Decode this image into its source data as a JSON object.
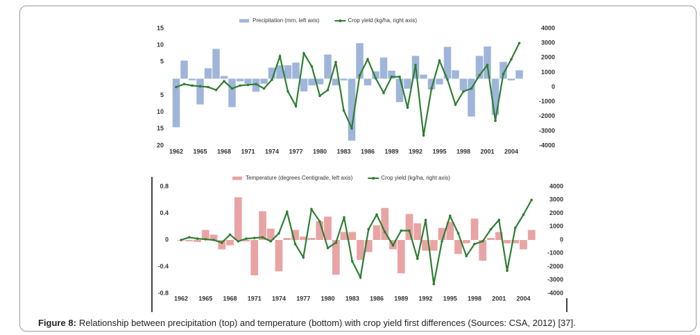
{
  "figure": {
    "caption_label": "Figure 8:",
    "caption_text": "Relationship between precipitation (top) and temperature (bottom) with crop yield first differences (Sources: CSA, 2012) [37]."
  },
  "chart_data": [
    {
      "type": "combo",
      "categories": [
        "1962",
        null,
        null,
        "1965",
        null,
        null,
        "1968",
        null,
        null,
        "1971",
        null,
        null,
        "1974",
        null,
        null,
        "1977",
        null,
        null,
        "1980",
        null,
        null,
        "1983",
        null,
        null,
        "1986",
        null,
        null,
        "1989",
        null,
        null,
        "1992",
        null,
        null,
        "1995",
        null,
        null,
        "1998",
        null,
        null,
        "2001",
        null,
        null,
        "2004",
        null
      ],
      "series": [
        {
          "name": "Precipitation (mm, left axis)",
          "type": "bar",
          "color": "#9fb5da",
          "axis": "y",
          "values": [
            -14.5,
            5.4,
            -0.5,
            -7.7,
            3.1,
            8.9,
            0.8,
            -8.5,
            -0.8,
            -1.5,
            -3.9,
            -1.5,
            3.3,
            4.0,
            4.0,
            4.8,
            -3.8,
            -2.0,
            -1.7,
            7.2,
            -2.0,
            -0.5,
            -18.5,
            10.6,
            -2.0,
            2.2,
            6.3,
            2.4,
            -7.0,
            -3.0,
            6.8,
            1.2,
            -3.2,
            -1.7,
            9.5,
            2.5,
            -3.5,
            -11.3,
            6.8,
            9.6,
            -10.8,
            5.0,
            -0.5,
            2.5
          ]
        },
        {
          "name": "Crop yield (kg/ha, right axis)",
          "type": "line",
          "color": "#2e7d32",
          "axis": "y2",
          "values": [
            0,
            200,
            100,
            50,
            0,
            -200,
            400,
            -100,
            100,
            150,
            200,
            -100,
            500,
            2100,
            -300,
            -1300,
            2300,
            1400,
            -600,
            -200,
            1700,
            -1600,
            -2800,
            800,
            1900,
            600,
            -400,
            700,
            700,
            -1400,
            1500,
            -3300,
            -100,
            1800,
            500,
            -1200,
            -300,
            -100,
            800,
            1500,
            -2300,
            900,
            1900,
            3000
          ]
        }
      ],
      "ylim": [
        -20,
        15
      ],
      "yticks": [
        15,
        10,
        5,
        {
          "value": -5,
          "label": "5"
        },
        {
          "value": -10,
          "label": "10"
        },
        {
          "value": -15,
          "label": "15"
        },
        {
          "value": -20,
          "label": "20"
        }
      ],
      "y2lim": [
        -4000,
        4000
      ],
      "y2ticks": [
        4000,
        3000,
        2000,
        1000,
        0,
        -1000,
        -2000,
        -3000,
        -4000
      ]
    },
    {
      "type": "combo",
      "categories": [
        "1962",
        null,
        null,
        "1965",
        null,
        null,
        "1968",
        null,
        null,
        "1971",
        null,
        null,
        "1974",
        null,
        null,
        "1977",
        null,
        null,
        "1980",
        null,
        null,
        "1983",
        null,
        null,
        "1986",
        null,
        null,
        "1989",
        null,
        null,
        "1992",
        null,
        null,
        "1995",
        null,
        null,
        "1998",
        null,
        null,
        "2001",
        null,
        null,
        "2004",
        null
      ],
      "series": [
        {
          "name": "Temperature (degrees Centigrade, left axis)",
          "type": "bar",
          "color": "#e8a4a4",
          "axis": "y",
          "values": [
            -0.01,
            -0.02,
            -0.03,
            0.15,
            0.08,
            -0.14,
            -0.08,
            0.64,
            -0.02,
            -0.53,
            0.43,
            0.17,
            -0.47,
            0.03,
            0.15,
            0.05,
            0.03,
            0.28,
            0.35,
            -0.52,
            0.12,
            0.12,
            -0.3,
            -0.18,
            0.22,
            0.48,
            -0.14,
            -0.5,
            0.39,
            0.25,
            -0.16,
            -0.16,
            0.18,
            0.27,
            -0.21,
            -0.05,
            0.32,
            -0.31,
            0.03,
            0.12,
            -0.05,
            -0.05,
            -0.14,
            0.15
          ]
        },
        {
          "name": "Crop yield (kg/ha, right axis)",
          "type": "line",
          "color": "#2e7d32",
          "axis": "y2",
          "values": [
            0,
            200,
            100,
            50,
            0,
            -200,
            400,
            -100,
            100,
            150,
            200,
            -100,
            500,
            2100,
            -300,
            -1300,
            2300,
            1400,
            -600,
            -200,
            1700,
            -1600,
            -2800,
            800,
            1900,
            600,
            -400,
            700,
            700,
            -1400,
            1500,
            -3300,
            -100,
            1800,
            500,
            -1200,
            -300,
            -100,
            800,
            1500,
            -2300,
            900,
            1900,
            3000
          ]
        }
      ],
      "ylim": [
        -0.8,
        0.8
      ],
      "yticks": [
        0.8,
        0.4,
        0,
        -0.4,
        -0.8
      ],
      "y2lim": [
        -4000,
        4000
      ],
      "y2ticks": [
        4000,
        3000,
        2000,
        1000,
        0,
        -1000,
        -2000,
        -3000,
        -4000
      ]
    }
  ]
}
